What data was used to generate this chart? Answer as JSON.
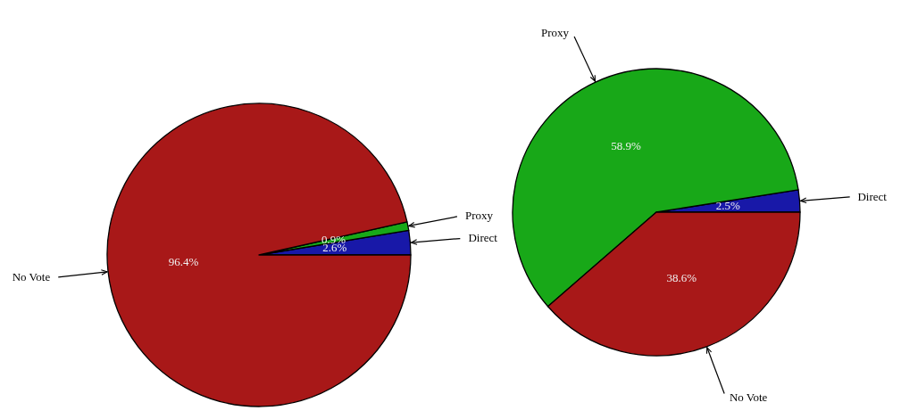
{
  "chart_data": [
    {
      "type": "pie",
      "categories": [
        "Direct",
        "Proxy",
        "No Vote"
      ],
      "values": [
        2.6,
        0.9,
        96.4
      ],
      "colors": [
        "#1818a8",
        "#18a818",
        "#a81818"
      ],
      "value_labels": [
        "2.6%",
        "0.9%",
        "96.4%"
      ]
    },
    {
      "type": "pie",
      "categories": [
        "Direct",
        "Proxy",
        "No Vote"
      ],
      "values": [
        2.5,
        58.9,
        38.6
      ],
      "colors": [
        "#1818a8",
        "#18a818",
        "#a81818"
      ],
      "value_labels": [
        "2.5%",
        "58.9%",
        "38.6%"
      ]
    }
  ]
}
